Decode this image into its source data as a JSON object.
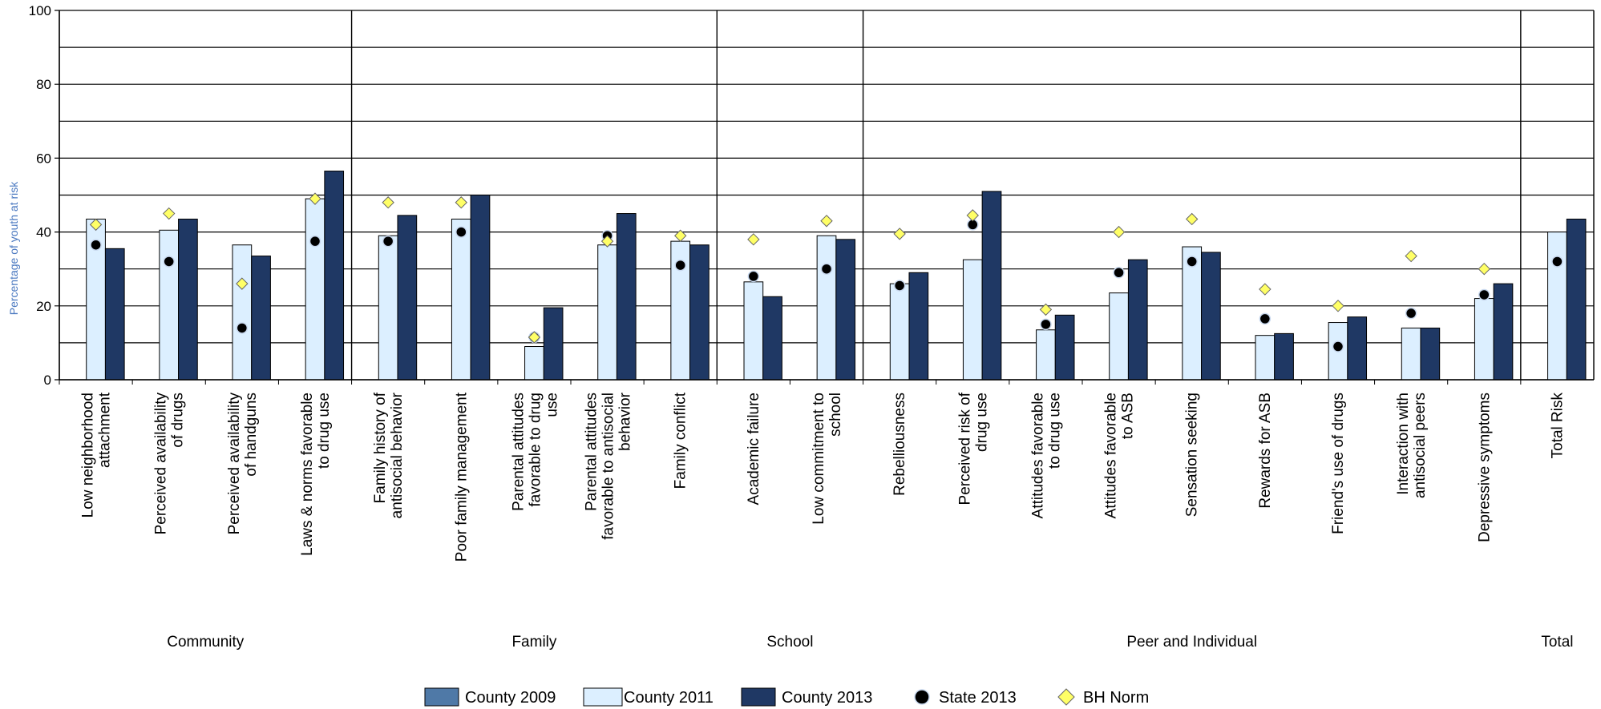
{
  "chart_data": {
    "type": "bar",
    "y_label": "Percentage of youth at risk",
    "categories": [
      "Low neighborhood\nattachment",
      "Perceived availability\nof drugs",
      "Perceived availability\nof handguns",
      "Laws & norms favorable\nto drug use",
      "Family history of\nantisocial behavior",
      "Poor family management",
      "Parental attitudes\nfavorable to drug\nuse",
      "Parental attitudes\nfavorable to antisocial\nbehavior",
      "Family conflict",
      "Academic failure",
      "Low commitment to\nschool",
      "Rebelliousness",
      "Perceived risk of\ndrug use",
      "Attitudes favorable\nto drug use",
      "Attitudes favorable\nto ASB",
      "Sensation seeking",
      "Rewards for ASB",
      "Friend's use of drugs",
      "Interaction with\nantisocial peers",
      "Depressive symptoms",
      "Total Risk"
    ],
    "groups": [
      {
        "name": "Community",
        "count": 4
      },
      {
        "name": "Family",
        "count": 5
      },
      {
        "name": "School",
        "count": 2
      },
      {
        "name": "Peer and Individual",
        "count": 9
      },
      {
        "name": "Total",
        "count": 1
      }
    ],
    "series": [
      {
        "name": "County 2009",
        "color": "#4f79a7",
        "mark": "bar",
        "values": [
          null,
          null,
          null,
          null,
          null,
          null,
          null,
          null,
          null,
          null,
          null,
          null,
          null,
          null,
          null,
          null,
          null,
          null,
          null,
          null,
          null
        ]
      },
      {
        "name": "County 2011",
        "color": "#dcefff",
        "mark": "bar",
        "values": [
          43.5,
          40.5,
          36.5,
          49,
          39,
          43.5,
          9,
          36.5,
          37.5,
          26.5,
          39,
          26,
          32.5,
          13.5,
          23.5,
          36,
          12,
          15.5,
          14,
          22,
          40
        ]
      },
      {
        "name": "County 2013",
        "color": "#1f3864",
        "mark": "bar",
        "values": [
          35.5,
          43.5,
          33.5,
          56.5,
          44.5,
          50,
          19.5,
          45,
          36.5,
          22.5,
          38,
          29,
          51,
          17.5,
          32.5,
          34.5,
          12.5,
          17,
          14,
          26,
          43.5
        ]
      },
      {
        "name": "State 2013",
        "color": "#000000",
        "mark": "dot",
        "values": [
          36.5,
          32,
          14,
          37.5,
          37.5,
          40,
          11.5,
          39,
          31,
          28,
          30,
          25.5,
          42,
          15,
          29,
          32,
          16.5,
          9,
          18,
          23,
          32
        ]
      },
      {
        "name": "BH Norm",
        "color": "#ffff66",
        "mark": "diamond",
        "values": [
          42,
          45,
          26,
          49,
          48,
          48,
          11.5,
          37.5,
          39,
          38,
          43,
          39.5,
          44.5,
          19,
          40,
          43.5,
          24.5,
          20,
          33.5,
          30,
          null
        ]
      }
    ],
    "ylim": [
      0,
      100
    ],
    "yticks": [
      0,
      20,
      40,
      60,
      80,
      100
    ],
    "minor_yticks": [
      10,
      30,
      50,
      70,
      90
    ],
    "grid": true
  }
}
